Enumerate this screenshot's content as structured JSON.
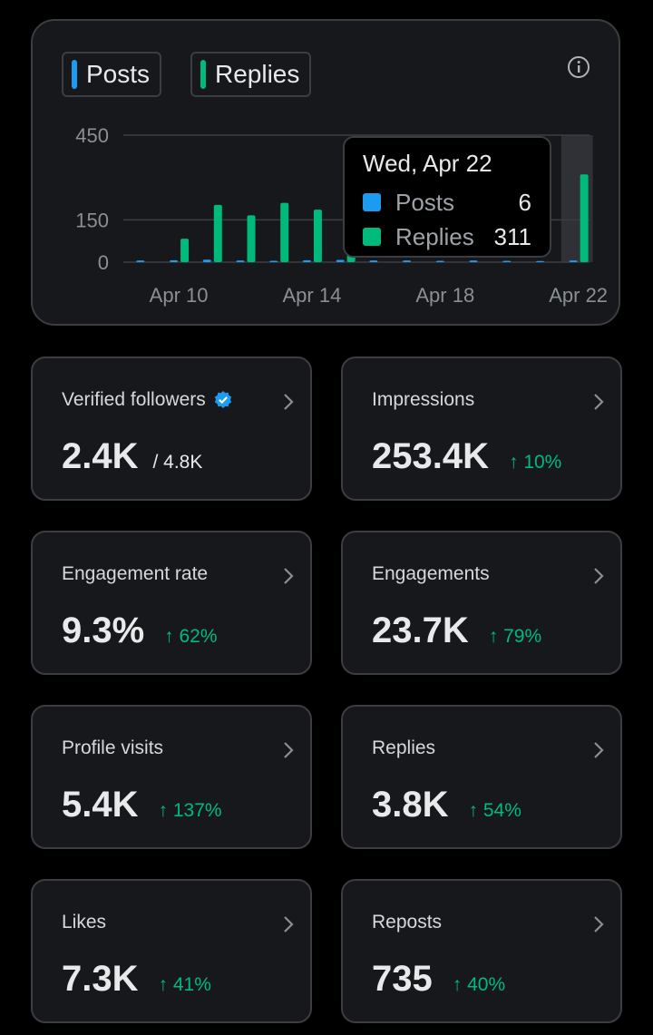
{
  "chart": {
    "legend": {
      "posts_label": "Posts",
      "replies_label": "Replies"
    },
    "colors": {
      "posts": "#1d9bf0",
      "replies": "#00ba7c"
    },
    "icons": {
      "info": "info-icon"
    },
    "tooltip": {
      "date": "Wed, Apr 22",
      "posts_label": "Posts",
      "posts_value": "6",
      "replies_label": "Replies",
      "replies_value": "311"
    }
  },
  "chart_data": {
    "type": "bar",
    "categories": [
      "Apr 9",
      "Apr 10",
      "Apr 11",
      "Apr 12",
      "Apr 13",
      "Apr 14",
      "Apr 15",
      "Apr 16",
      "Apr 17",
      "Apr 18",
      "Apr 19",
      "Apr 20",
      "Apr 21",
      "Apr 22"
    ],
    "series": [
      {
        "name": "Posts",
        "values": [
          6,
          7,
          9,
          6,
          5,
          7,
          8,
          6,
          6,
          5,
          6,
          5,
          4,
          6
        ]
      },
      {
        "name": "Replies",
        "values": [
          0,
          83,
          203,
          166,
          210,
          186,
          161,
          0,
          0,
          0,
          0,
          0,
          0,
          311
        ]
      }
    ],
    "y_ticks": [
      "0",
      "150",
      "450"
    ],
    "x_ticks": [
      "Apr 10",
      "Apr 14",
      "Apr 18",
      "Apr 22"
    ],
    "ylim": [
      0,
      450
    ],
    "highlighted": "Apr 22",
    "grid": true
  },
  "stats": [
    {
      "label": "Verified followers",
      "value": "2.4K",
      "sub": "/ 4.8K",
      "delta": "",
      "verified": true
    },
    {
      "label": "Impressions",
      "value": "253.4K",
      "sub": "",
      "delta": "↑ 10%"
    },
    {
      "label": "Engagement rate",
      "value": "9.3%",
      "sub": "",
      "delta": "↑ 62%"
    },
    {
      "label": "Engagements",
      "value": "23.7K",
      "sub": "",
      "delta": "↑ 79%"
    },
    {
      "label": "Profile visits",
      "value": "5.4K",
      "sub": "",
      "delta": "↑ 137%"
    },
    {
      "label": "Replies",
      "value": "3.8K",
      "sub": "",
      "delta": "↑ 54%"
    },
    {
      "label": "Likes",
      "value": "7.3K",
      "sub": "",
      "delta": "↑ 41%"
    },
    {
      "label": "Reposts",
      "value": "735",
      "sub": "",
      "delta": "↑ 40%"
    }
  ]
}
